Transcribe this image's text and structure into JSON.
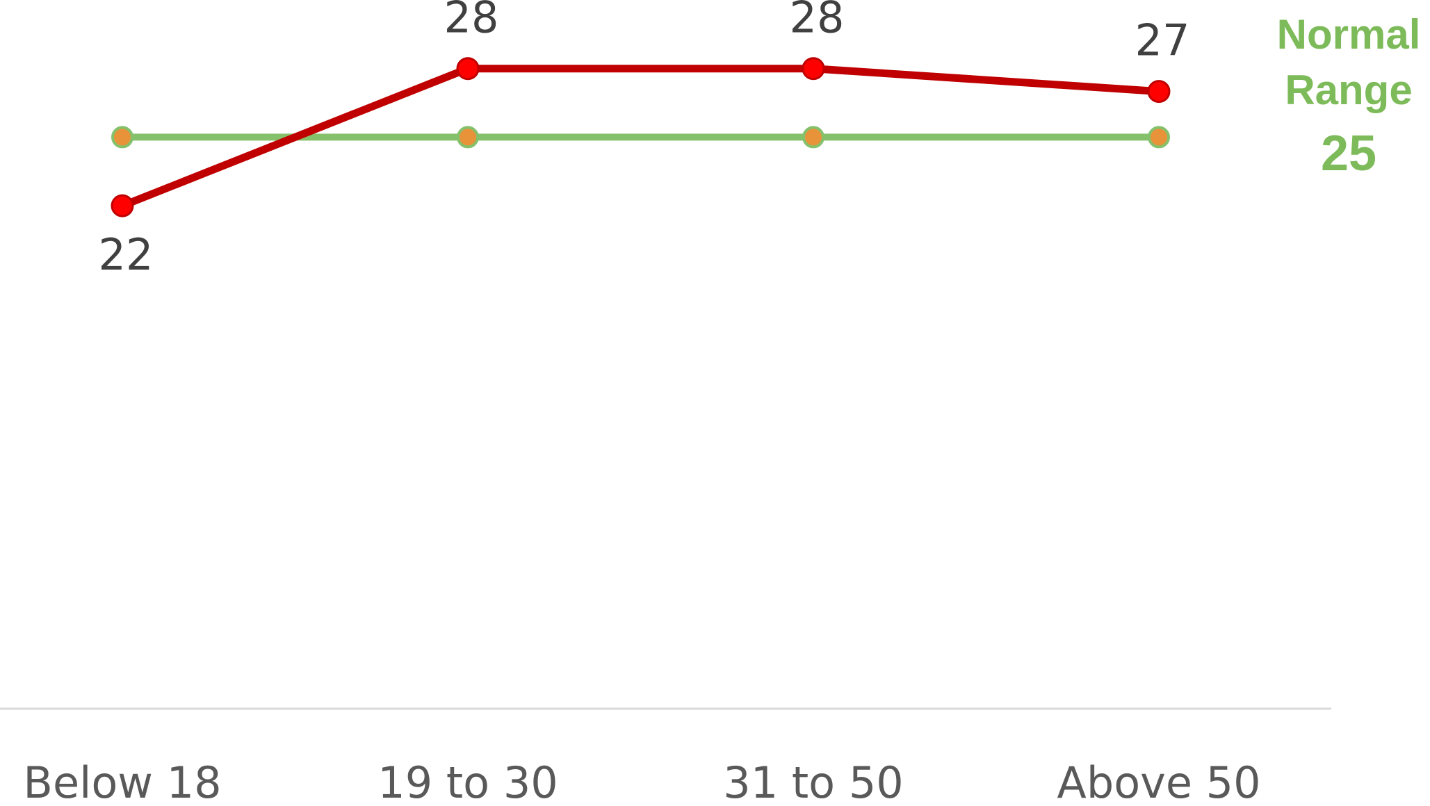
{
  "chart_data": {
    "type": "line",
    "categories": [
      "Below 18",
      "19 to 30",
      "31 to 50",
      "Above 50"
    ],
    "series": [
      {
        "values": [
          22,
          28,
          28,
          27
        ],
        "color": "#c00000",
        "marker_color": "#ff0000",
        "data_labels": [
          "22",
          "28",
          "28",
          "27"
        ],
        "label_positions": [
          "below",
          "above",
          "above",
          "above"
        ]
      },
      {
        "values": [
          25,
          25,
          25,
          25
        ],
        "color": "#85c06b",
        "marker_color": "#e8933a",
        "data_labels": [],
        "label_positions": []
      }
    ],
    "reference": {
      "label_line1": "Normal",
      "label_line2": "Range",
      "value_label": "25",
      "color": "#7dbb5a"
    },
    "title": "",
    "xlabel": "",
    "ylabel": "",
    "ylim": [
      0,
      31
    ],
    "grid": false,
    "legend": "none",
    "axis_color": "#d9d9d9"
  }
}
